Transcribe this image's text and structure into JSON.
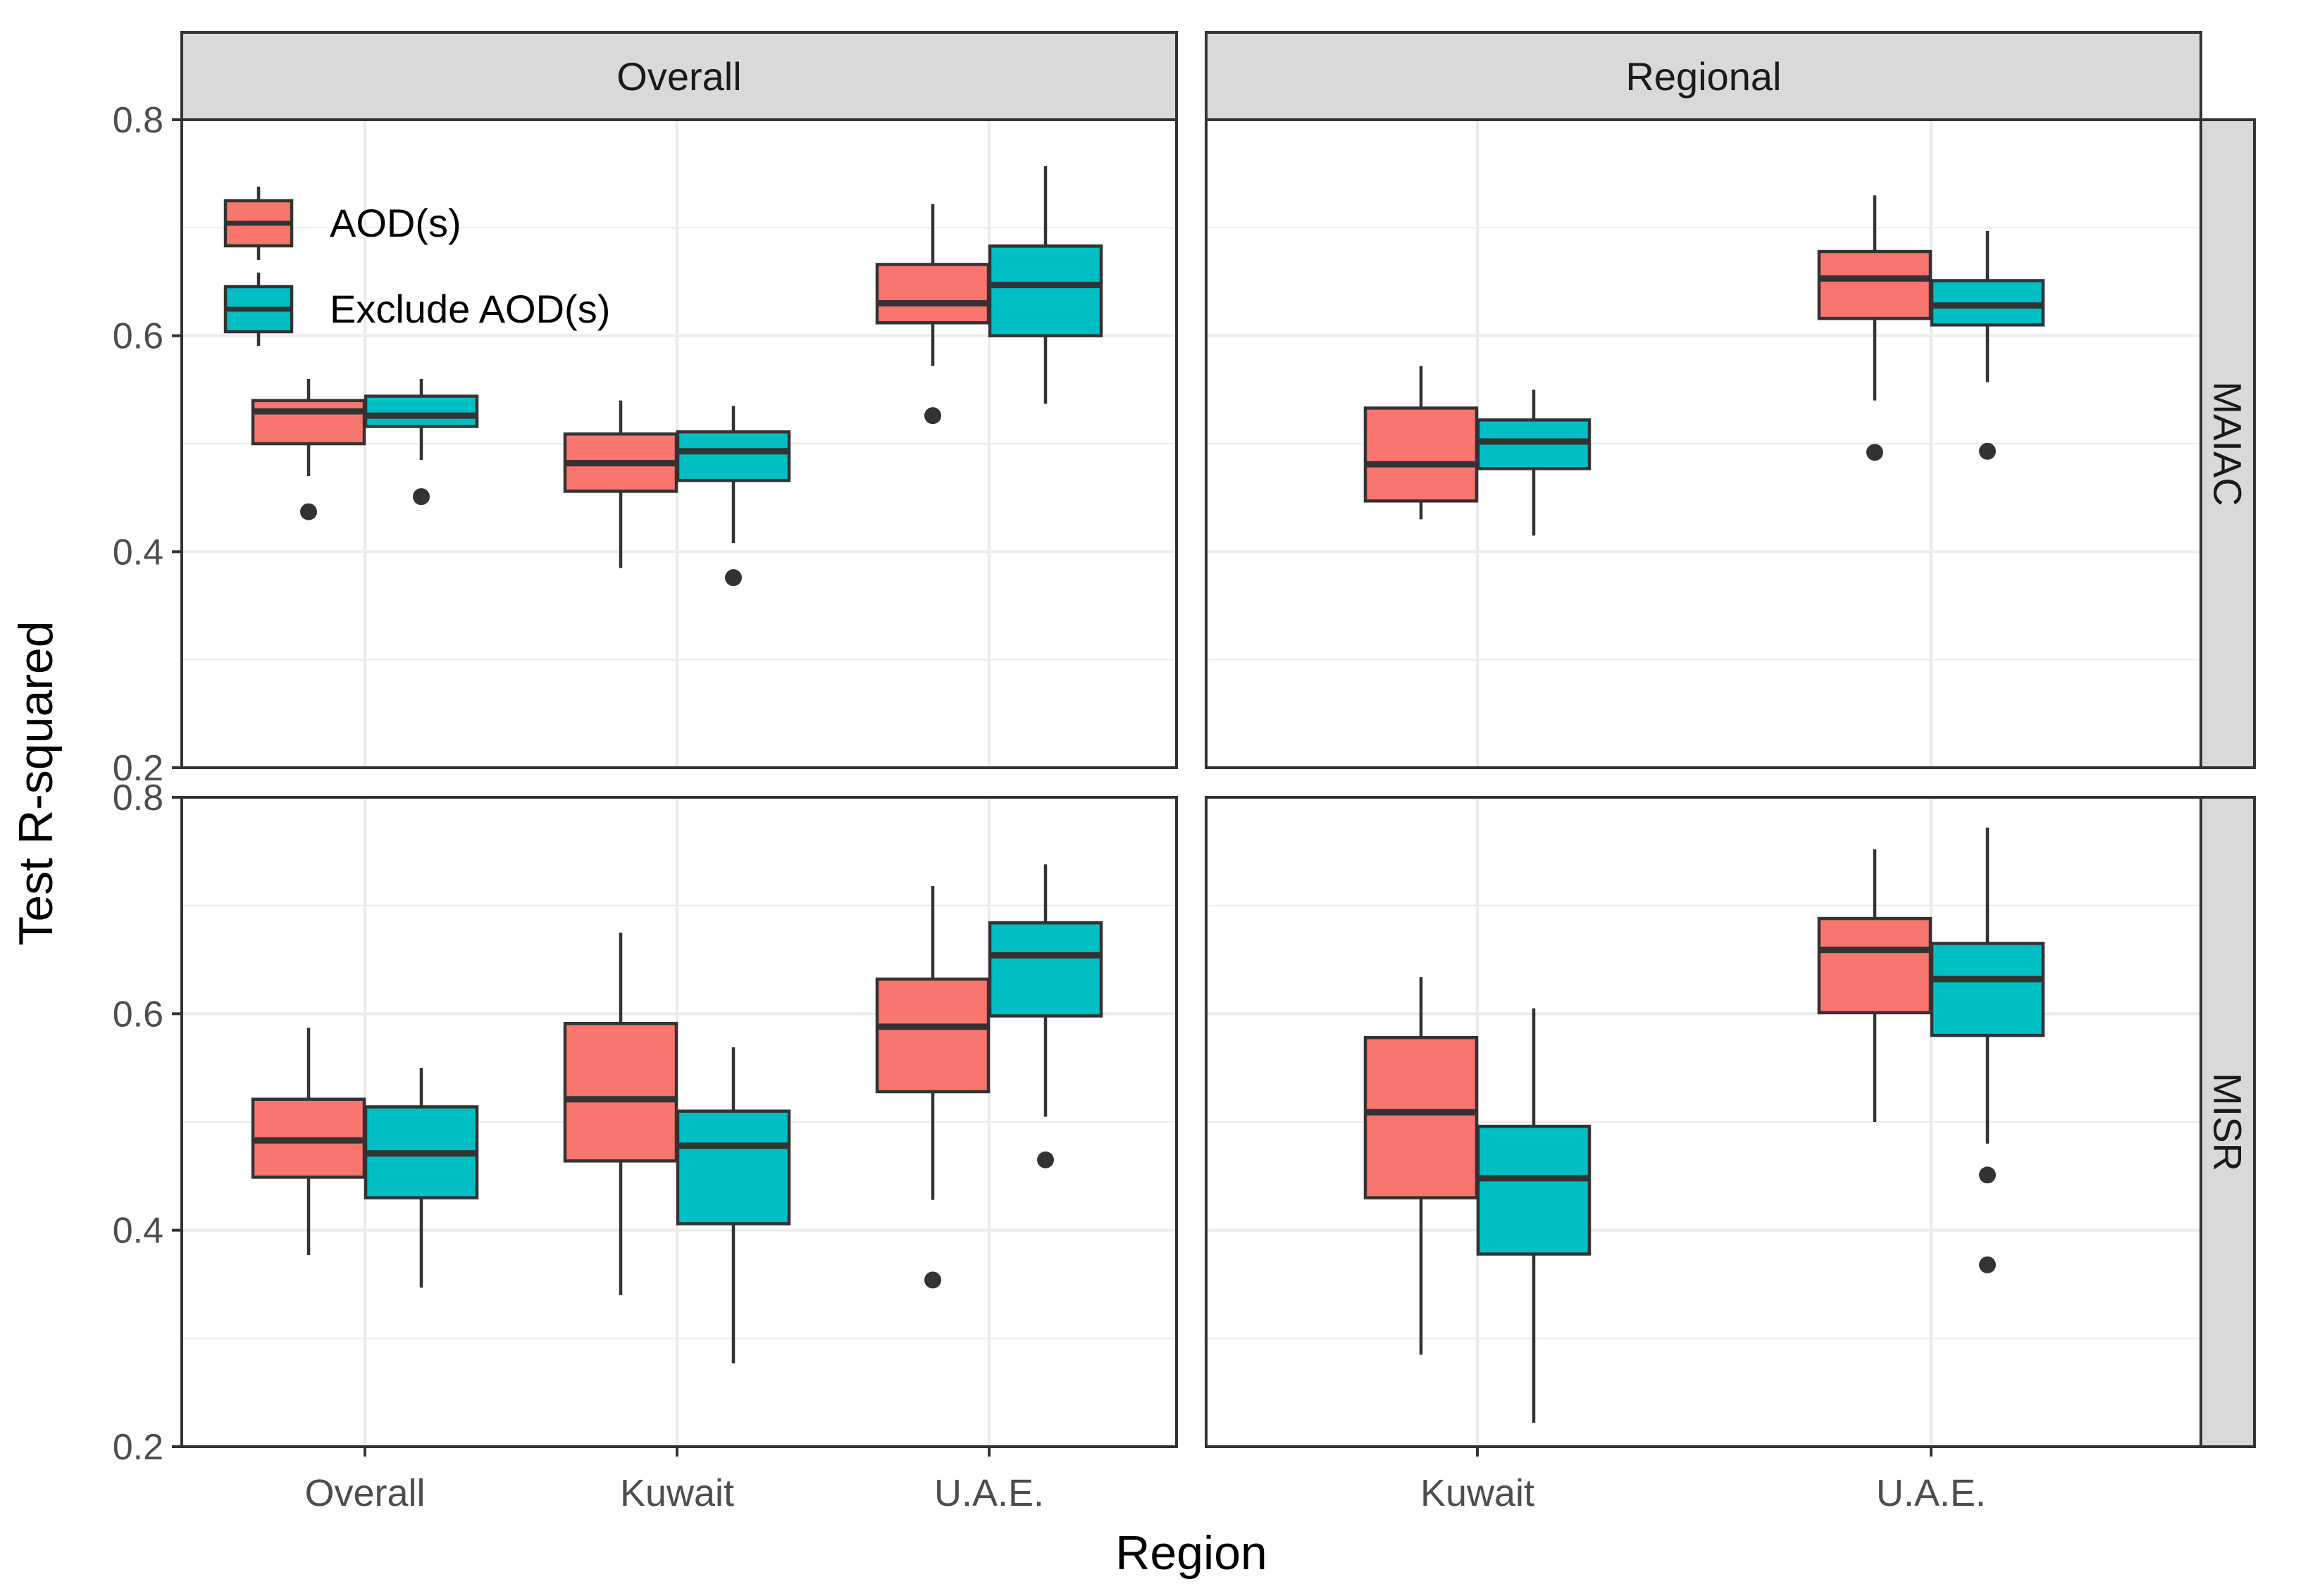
{
  "chart_data": {
    "type": "boxplot",
    "xlabel": "Region",
    "ylabel": "Test R-squared",
    "ylim": [
      0.2,
      0.8
    ],
    "yticks": [
      0.2,
      0.4,
      0.6,
      0.8
    ],
    "ytick_labels": [
      "0.2",
      "0.4",
      "0.6",
      "0.8"
    ],
    "grid": true,
    "legend": {
      "position": "top-left inside",
      "entries": [
        {
          "name": "AOD(s)",
          "color": "#F8766D"
        },
        {
          "name": "Exclude AOD(s)",
          "color": "#00BFC4"
        }
      ]
    },
    "columns": [
      {
        "label": "Overall",
        "categories": [
          "Overall",
          "Kuwait",
          "U.A.E."
        ]
      },
      {
        "label": "Regional",
        "categories": [
          "Kuwait",
          "U.A.E."
        ]
      }
    ],
    "rows": [
      {
        "label": "MAIAC"
      },
      {
        "label": "MISR"
      }
    ],
    "panels": [
      {
        "row": "MAIAC",
        "column": "Overall",
        "boxes": [
          {
            "category": "Overall",
            "series": "AOD(s)",
            "whisker_low": 0.47,
            "q1": 0.5,
            "median": 0.53,
            "q3": 0.54,
            "whisker_high": 0.56,
            "outliers": [
              0.437
            ]
          },
          {
            "category": "Overall",
            "series": "Exclude AOD(s)",
            "whisker_low": 0.485,
            "q1": 0.516,
            "median": 0.526,
            "q3": 0.544,
            "whisker_high": 0.56,
            "outliers": [
              0.451
            ]
          },
          {
            "category": "Kuwait",
            "series": "AOD(s)",
            "whisker_low": 0.385,
            "q1": 0.456,
            "median": 0.482,
            "q3": 0.509,
            "whisker_high": 0.54,
            "outliers": []
          },
          {
            "category": "Kuwait",
            "series": "Exclude AOD(s)",
            "whisker_low": 0.408,
            "q1": 0.466,
            "median": 0.493,
            "q3": 0.511,
            "whisker_high": 0.535,
            "outliers": [
              0.376
            ]
          },
          {
            "category": "U.A.E.",
            "series": "AOD(s)",
            "whisker_low": 0.572,
            "q1": 0.612,
            "median": 0.63,
            "q3": 0.666,
            "whisker_high": 0.722,
            "outliers": [
              0.526
            ]
          },
          {
            "category": "U.A.E.",
            "series": "Exclude AOD(s)",
            "whisker_low": 0.537,
            "q1": 0.6,
            "median": 0.647,
            "q3": 0.683,
            "whisker_high": 0.757,
            "outliers": []
          }
        ]
      },
      {
        "row": "MAIAC",
        "column": "Regional",
        "boxes": [
          {
            "category": "Kuwait",
            "series": "AOD(s)",
            "whisker_low": 0.43,
            "q1": 0.447,
            "median": 0.481,
            "q3": 0.533,
            "whisker_high": 0.572,
            "outliers": []
          },
          {
            "category": "Kuwait",
            "series": "Exclude AOD(s)",
            "whisker_low": 0.415,
            "q1": 0.477,
            "median": 0.502,
            "q3": 0.522,
            "whisker_high": 0.55,
            "outliers": []
          },
          {
            "category": "U.A.E.",
            "series": "AOD(s)",
            "whisker_low": 0.54,
            "q1": 0.616,
            "median": 0.653,
            "q3": 0.678,
            "whisker_high": 0.73,
            "outliers": [
              0.492
            ]
          },
          {
            "category": "U.A.E.",
            "series": "Exclude AOD(s)",
            "whisker_low": 0.557,
            "q1": 0.61,
            "median": 0.628,
            "q3": 0.651,
            "whisker_high": 0.697,
            "outliers": [
              0.493
            ]
          }
        ]
      },
      {
        "row": "MISR",
        "column": "Overall",
        "boxes": [
          {
            "category": "Overall",
            "series": "AOD(s)",
            "whisker_low": 0.377,
            "q1": 0.449,
            "median": 0.483,
            "q3": 0.521,
            "whisker_high": 0.587,
            "outliers": []
          },
          {
            "category": "Overall",
            "series": "Exclude AOD(s)",
            "whisker_low": 0.347,
            "q1": 0.43,
            "median": 0.471,
            "q3": 0.514,
            "whisker_high": 0.55,
            "outliers": []
          },
          {
            "category": "Kuwait",
            "series": "AOD(s)",
            "whisker_low": 0.34,
            "q1": 0.464,
            "median": 0.521,
            "q3": 0.591,
            "whisker_high": 0.675,
            "outliers": []
          },
          {
            "category": "Kuwait",
            "series": "Exclude AOD(s)",
            "whisker_low": 0.277,
            "q1": 0.406,
            "median": 0.478,
            "q3": 0.51,
            "whisker_high": 0.569,
            "outliers": []
          },
          {
            "category": "U.A.E.",
            "series": "AOD(s)",
            "whisker_low": 0.428,
            "q1": 0.528,
            "median": 0.588,
            "q3": 0.632,
            "whisker_high": 0.718,
            "outliers": [
              0.354
            ]
          },
          {
            "category": "U.A.E.",
            "series": "Exclude AOD(s)",
            "whisker_low": 0.505,
            "q1": 0.598,
            "median": 0.654,
            "q3": 0.684,
            "whisker_high": 0.738,
            "outliers": [
              0.465
            ]
          }
        ]
      },
      {
        "row": "MISR",
        "column": "Regional",
        "boxes": [
          {
            "category": "Kuwait",
            "series": "AOD(s)",
            "whisker_low": 0.285,
            "q1": 0.43,
            "median": 0.509,
            "q3": 0.578,
            "whisker_high": 0.634,
            "outliers": []
          },
          {
            "category": "Kuwait",
            "series": "Exclude AOD(s)",
            "whisker_low": 0.222,
            "q1": 0.378,
            "median": 0.448,
            "q3": 0.496,
            "whisker_high": 0.605,
            "outliers": []
          },
          {
            "category": "U.A.E.",
            "series": "AOD(s)",
            "whisker_low": 0.5,
            "q1": 0.601,
            "median": 0.659,
            "q3": 0.688,
            "whisker_high": 0.752,
            "outliers": []
          },
          {
            "category": "U.A.E.",
            "series": "Exclude AOD(s)",
            "whisker_low": 0.48,
            "q1": 0.58,
            "median": 0.632,
            "q3": 0.665,
            "whisker_high": 0.772,
            "outliers": [
              0.451,
              0.368
            ]
          }
        ]
      }
    ]
  }
}
